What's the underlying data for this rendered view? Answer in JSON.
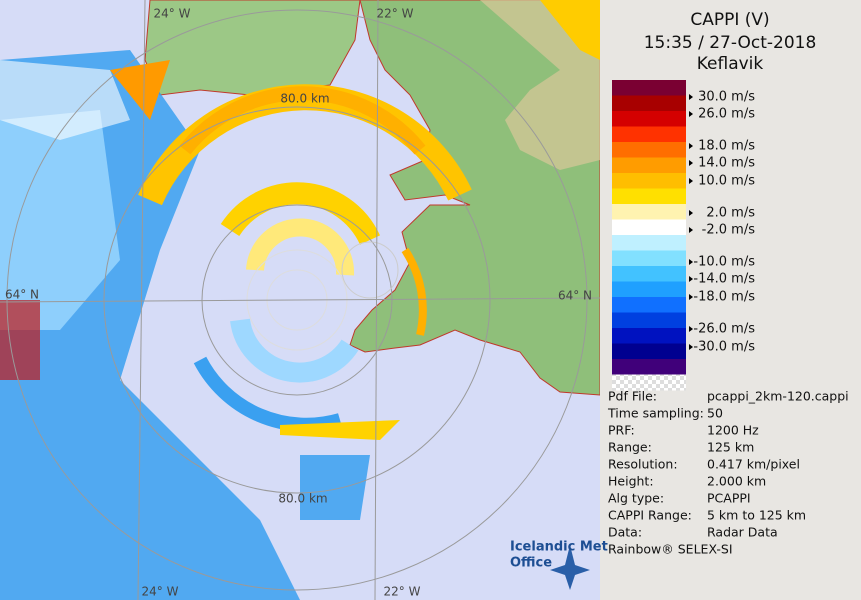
{
  "header": {
    "title": "CAPPI (V)",
    "time": "15:35 / 27-Oct-2018",
    "site": "Keflavik"
  },
  "legend": {
    "labels": [
      "30.0 m/s",
      "26.0 m/s",
      "18.0 m/s",
      "14.0 m/s",
      "10.0 m/s",
      "2.0 m/s",
      "-2.0 m/s",
      "-10.0 m/s",
      "-14.0 m/s",
      "-18.0 m/s",
      "-26.0 m/s",
      "-30.0 m/s"
    ]
  },
  "info": {
    "rows": [
      [
        "Pdf File:",
        "pcappi_2km-120.cappi"
      ],
      [
        "Time sampling:",
        "50"
      ],
      [
        "PRF:",
        "1200 Hz"
      ],
      [
        "Range:",
        "125 km"
      ],
      [
        "Resolution:",
        "0.417 km/pixel"
      ],
      [
        "Height:",
        "2.000 km"
      ],
      [
        "Alg type:",
        "PCAPPI"
      ],
      [
        "CAPPI Range:",
        "5 km to 125 km"
      ],
      [
        "Data:",
        "Radar Data"
      ]
    ],
    "footer": "Rainbow® SELEX-SI"
  },
  "map": {
    "labels": [
      "24° W",
      "22° W",
      "80.0 km",
      "64° N",
      "64° N",
      "80.0 km",
      "24° W",
      "22° W"
    ]
  },
  "logo": {
    "line1": "Icelandic Met",
    "line2": "Office"
  }
}
